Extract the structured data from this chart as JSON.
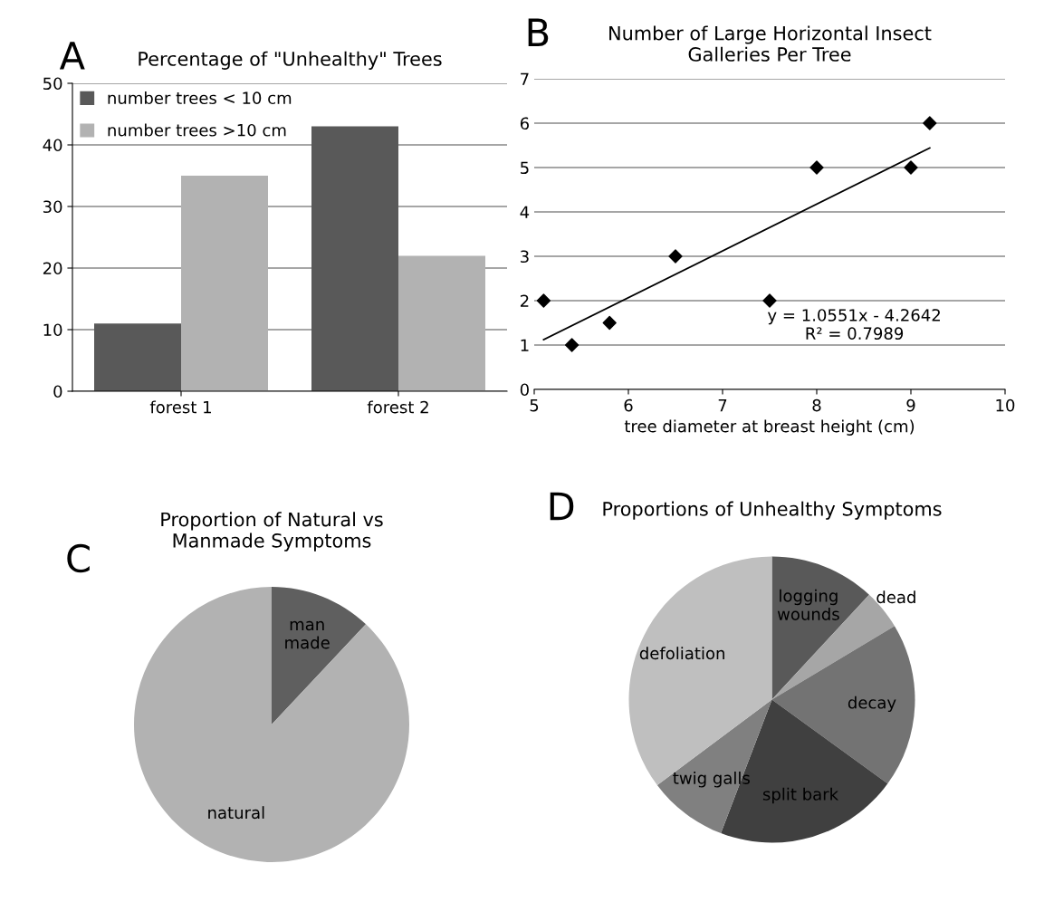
{
  "chart_data": [
    {
      "type": "bar",
      "title": "Percentage of \"Unhealthy\" Trees",
      "annotations": [
        "A"
      ],
      "categories": [
        "forest 1",
        "forest 2"
      ],
      "series": [
        {
          "name": "number trees < 10 cm",
          "color": "#595959",
          "values": [
            11,
            43
          ]
        },
        {
          "name": "number trees >10 cm",
          "color": "#b2b2b2",
          "values": [
            35,
            22
          ]
        }
      ],
      "ylim": [
        0,
        50
      ],
      "yticks": [
        0,
        10,
        20,
        30,
        40,
        50
      ],
      "grid": "y",
      "legend": "top left"
    },
    {
      "type": "scatter",
      "title": "Number of Large Horizontal Insect\nGalleries Per Tree",
      "xlabel": "tree diameter at breast height (cm)",
      "annotations": [
        "B",
        "y = 1.0551x - 4.2642\nR² = 0.7989"
      ],
      "series": [
        {
          "type": "scatter",
          "color": "#000000",
          "marker": "diamond",
          "x": [
            5.1,
            5.4,
            5.8,
            6.5,
            7.5,
            8,
            9,
            9.2
          ],
          "values": [
            2,
            1,
            1.5,
            3,
            2,
            5,
            5,
            6
          ]
        },
        {
          "type": "line",
          "color": "#000000",
          "x": [
            5.1,
            9.2
          ],
          "values": [
            1.12,
            5.44
          ]
        }
      ],
      "xlim": [
        5,
        10
      ],
      "xticks": [
        5,
        6,
        7,
        8,
        9,
        10
      ],
      "ylim": [
        0,
        7
      ],
      "yticks": [
        0,
        1,
        2,
        3,
        4,
        5,
        6,
        7
      ],
      "grid": "y"
    },
    {
      "type": "pie",
      "title": "Proportion of Natural vs\nManmade Symptoms",
      "annotations": [
        "C"
      ],
      "categories": [
        "man\nmade",
        "natural"
      ],
      "values": [
        12,
        88
      ],
      "colors": [
        "#5f5f5f",
        "#b2b2b2"
      ]
    },
    {
      "type": "pie",
      "title": "Proportions of Unhealthy Symptoms",
      "annotations": [
        "D"
      ],
      "categories": [
        "logging\nwounds",
        "dead",
        "decay",
        "split bark",
        "twig galls",
        "defoliation"
      ],
      "values": [
        11.9,
        4.5,
        18.6,
        20.8,
        9.0,
        35.2
      ],
      "colors": [
        "#595959",
        "#a6a6a6",
        "#737373",
        "#404040",
        "#808080",
        "#bfbfbf"
      ]
    }
  ]
}
